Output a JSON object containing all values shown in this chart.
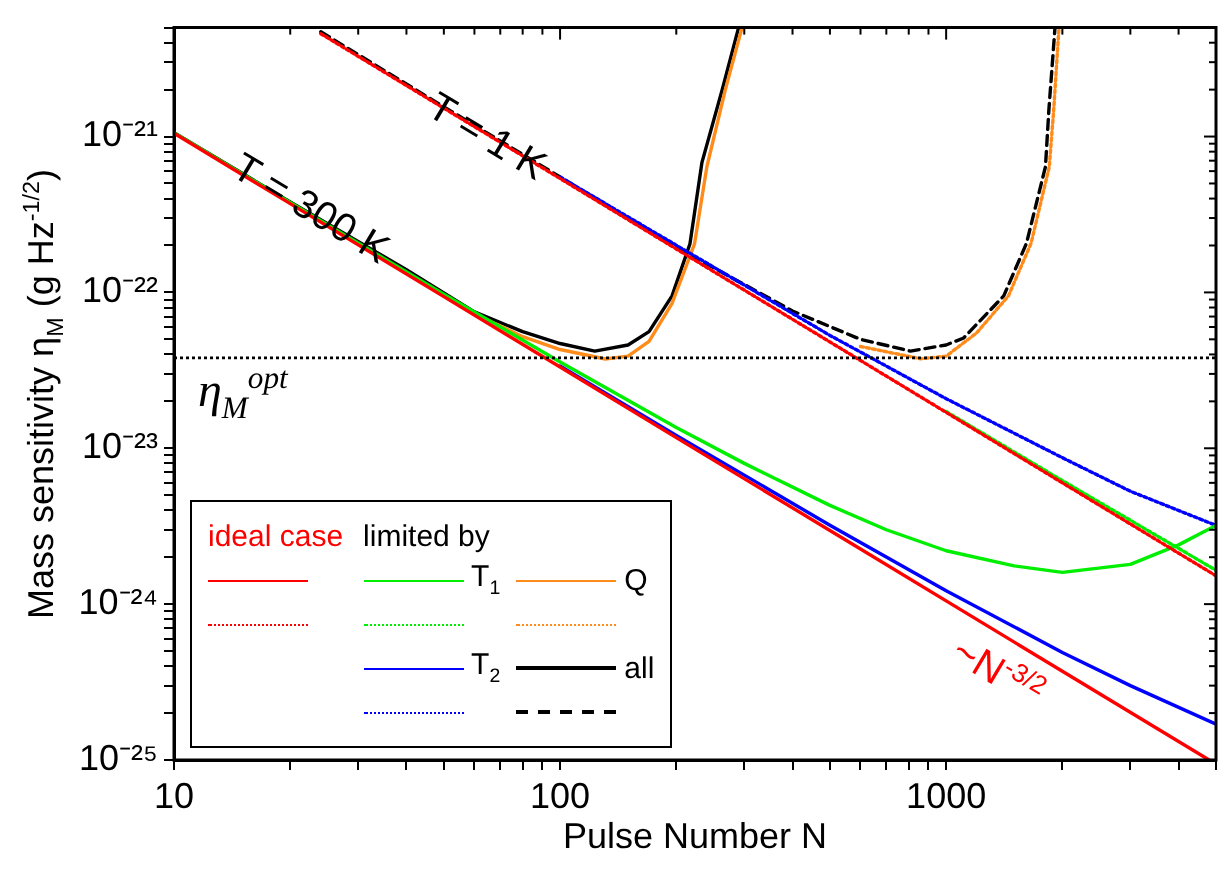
{
  "chart_data": {
    "type": "line",
    "xlabel": "Pulse Number N",
    "ylabel": "Mass sensitivity η$_{M}$ (g Hz$^{-1/2}$)",
    "log": "xy",
    "grid": false,
    "legend": "bottom left",
    "legend_title": "limited by",
    "xlim": [
      10,
      5000
    ],
    "ylim": [
      1e-25,
      5e-21
    ],
    "xticks": [
      10,
      {
        "value": 20,
        "label": null
      },
      {
        "value": 30,
        "label": null
      },
      {
        "value": 40,
        "label": null
      },
      {
        "value": 50,
        "label": null
      },
      {
        "value": 60,
        "label": null
      },
      {
        "value": 70,
        "label": null
      },
      {
        "value": 80,
        "label": null
      },
      {
        "value": 90,
        "label": null
      },
      100,
      {
        "value": 200,
        "label": null
      },
      {
        "value": 300,
        "label": null
      },
      {
        "value": 400,
        "label": null
      },
      {
        "value": 500,
        "label": null
      },
      {
        "value": 600,
        "label": null
      },
      {
        "value": 700,
        "label": null
      },
      {
        "value": 800,
        "label": null
      },
      {
        "value": 900,
        "label": null
      },
      1000,
      {
        "value": 2000,
        "label": null
      },
      {
        "value": 3000,
        "label": null
      },
      {
        "value": 4000,
        "label": null
      },
      {
        "value": 5000,
        "label": null
      }
    ],
    "yticks": [
      {
        "value": 1e-25,
        "label": "10⁻²⁵"
      },
      {
        "value": 2e-25,
        "label": null
      },
      {
        "value": 3e-25,
        "label": null
      },
      {
        "value": 4e-25,
        "label": null
      },
      {
        "value": 5e-25,
        "label": null
      },
      {
        "value": 6e-25,
        "label": null
      },
      {
        "value": 7e-25,
        "label": null
      },
      {
        "value": 8e-25,
        "label": null
      },
      {
        "value": 9e-25,
        "label": null
      },
      {
        "value": 1e-24,
        "label": "10⁻²⁴"
      },
      {
        "value": 2e-24,
        "label": null
      },
      {
        "value": 3e-24,
        "label": null
      },
      {
        "value": 4e-24,
        "label": null
      },
      {
        "value": 5e-24,
        "label": null
      },
      {
        "value": 6e-24,
        "label": null
      },
      {
        "value": 7e-24,
        "label": null
      },
      {
        "value": 8e-24,
        "label": null
      },
      {
        "value": 9e-24,
        "label": null
      },
      {
        "value": 1e-23,
        "label": "10⁻²³"
      },
      {
        "value": 2e-23,
        "label": null
      },
      {
        "value": 3e-23,
        "label": null
      },
      {
        "value": 4e-23,
        "label": null
      },
      {
        "value": 5e-23,
        "label": null
      },
      {
        "value": 6e-23,
        "label": null
      },
      {
        "value": 7e-23,
        "label": null
      },
      {
        "value": 8e-23,
        "label": null
      },
      {
        "value": 9e-23,
        "label": null
      },
      {
        "value": 1e-22,
        "label": "10⁻²²"
      },
      {
        "value": 2e-22,
        "label": null
      },
      {
        "value": 3e-22,
        "label": null
      },
      {
        "value": 4e-22,
        "label": null
      },
      {
        "value": 5e-22,
        "label": null
      },
      {
        "value": 6e-22,
        "label": null
      },
      {
        "value": 7e-22,
        "label": null
      },
      {
        "value": 8e-22,
        "label": null
      },
      {
        "value": 9e-22,
        "label": null
      },
      {
        "value": 1e-21,
        "label": "10⁻²¹"
      },
      {
        "value": 2e-21,
        "label": null
      },
      {
        "value": 3e-21,
        "label": null
      },
      {
        "value": 4e-21,
        "label": null
      },
      {
        "value": 5e-21,
        "label": null
      }
    ],
    "ref_lines": [
      {
        "axis": "y",
        "value": 3.8e-23,
        "label": "η$_{M}$$^{opt}$",
        "color": "#000000",
        "line_style": "dotted"
      }
    ],
    "annotations": [
      "T = 300 K",
      "T = 1 K",
      "~N$^{-3/2}$"
    ],
    "series": [
      {
        "name": "ideal case",
        "color": "#ff0000",
        "x": [
          10,
          20,
          50,
          100,
          200,
          500,
          1000,
          2000,
          4800
        ],
        "values": [
          1.05e-21,
          3.71e-22,
          9.39e-23,
          3.32e-23,
          1.17e-23,
          2.97e-24,
          1.05e-24,
          3.71e-25,
          1e-25
        ]
      },
      {
        "color": "#ff0000",
        "line_style": "dotted",
        "x": [
          24,
          50,
          100,
          200,
          500,
          1000,
          2000,
          5000
        ],
        "values": [
          4.57e-21,
          1.52e-21,
          5.38e-22,
          1.9e-22,
          4.81e-23,
          1.7e-23,
          6e-24,
          1.52e-24
        ]
      },
      {
        "name": "T$_{1}$",
        "color": "#00ee00",
        "x": [
          10,
          20,
          50,
          100,
          200,
          300,
          500,
          700,
          1000,
          1500,
          2000,
          3000,
          4000,
          5000
        ],
        "values": [
          1.06e-21,
          3.77e-22,
          9.75e-23,
          3.58e-23,
          1.36e-23,
          8e-24,
          4.3e-24,
          3e-24,
          2.2e-24,
          1.76e-24,
          1.6e-24,
          1.8e-24,
          2.4e-24,
          3.2e-24
        ]
      },
      {
        "color": "#00ee00",
        "line_style": "dotted",
        "x": [
          1000,
          2000,
          5000
        ],
        "values": [
          1.72e-23,
          6.2e-24,
          1.65e-24
        ]
      },
      {
        "name": "T$_{2}$",
        "color": "#0000ff",
        "x": [
          100,
          200,
          500,
          1000,
          2000,
          3000,
          5000
        ],
        "values": [
          3.37e-23,
          1.21e-23,
          3.21e-24,
          1.22e-24,
          4.9e-25,
          3e-25,
          1.7e-25
        ]
      },
      {
        "color": "#0000ff",
        "line_style": "dotted",
        "x": [
          100,
          500,
          1000,
          2000,
          3000,
          5000
        ],
        "values": [
          5.5e-22,
          5.3e-23,
          2.08e-23,
          8.7e-24,
          5.3e-24,
          3.2e-24
        ]
      },
      {
        "name": "Q",
        "color": "#ff8c1a",
        "x": [
          40,
          60,
          80,
          100,
          131,
          150,
          170,
          195,
          223,
          240,
          268,
          296
        ],
        "values": [
          1.33e-22,
          7.3e-23,
          5.2e-23,
          4.3e-23,
          3.74e-23,
          3.9e-23,
          4.85e-23,
          8.5e-23,
          2.05e-22,
          6.4e-22,
          2e-21,
          5e-21
        ]
      },
      {
        "color": "#ff8c1a",
        "line_style": "dotted",
        "x": [
          600,
          860,
          1000,
          1200,
          1450,
          1660,
          1850,
          1900,
          1960
        ],
        "values": [
          4.5e-23,
          3.75e-23,
          3.9e-23,
          5.5e-23,
          9.5e-23,
          2.07e-22,
          6.4e-22,
          1.5e-21,
          5e-21
        ]
      },
      {
        "name": "all",
        "color": "#000000",
        "x": [
          10,
          20,
          40,
          60,
          80,
          100,
          123,
          150,
          170,
          195,
          217,
          233,
          263,
          290
        ],
        "values": [
          1.06e-21,
          3.8e-22,
          1.4e-22,
          7.5e-23,
          5.6e-23,
          4.7e-23,
          4.2e-23,
          4.6e-23,
          5.6e-23,
          9.5e-23,
          2.05e-22,
          6.8e-22,
          2e-21,
          5e-21
        ]
      },
      {
        "color": "#000000",
        "line_style": "dashed",
        "x": [
          24,
          50,
          100,
          200,
          400,
          600,
          809,
          1000,
          1110,
          1410,
          1615,
          1808,
          1846,
          1914
        ],
        "values": [
          4.7e-21,
          1.55e-21,
          5.5e-22,
          1.95e-22,
          7.6e-23,
          5e-23,
          4.2e-23,
          4.6e-23,
          5.1e-23,
          9.5e-23,
          2.07e-22,
          6.4e-22,
          1.5e-21,
          5e-21
        ]
      }
    ]
  }
}
